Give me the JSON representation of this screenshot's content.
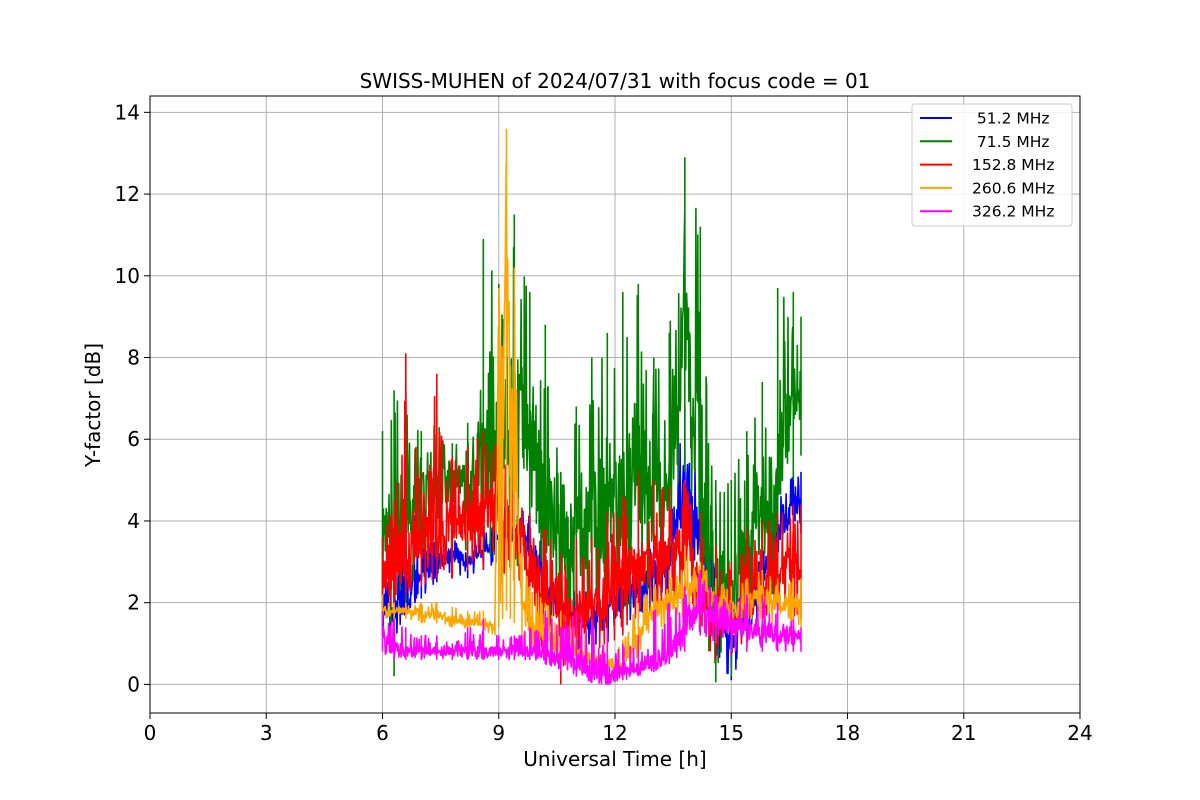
{
  "chart_data": {
    "type": "line",
    "title": "SWISS-MUHEN of 2024/07/31 with focus code = 01",
    "xlabel": "Universal Time [h]",
    "ylabel": "Y-factor [dB]",
    "xlim": [
      0,
      24
    ],
    "ylim": [
      -0.7,
      14.4
    ],
    "xticks": [
      0,
      3,
      6,
      9,
      12,
      15,
      18,
      21,
      24
    ],
    "yticks": [
      0,
      2,
      4,
      6,
      8,
      10,
      12,
      14
    ],
    "grid": true,
    "legend_position": "top-right",
    "series": [
      {
        "name": " 51.2 MHz",
        "color": "#0000ff",
        "x": [
          6.0,
          6.3,
          6.6,
          7.0,
          7.4,
          7.8,
          8.2,
          8.6,
          9.0,
          9.4,
          9.8,
          10.2,
          10.6,
          11.0,
          11.4,
          11.8,
          12.2,
          12.6,
          13.0,
          13.4,
          13.8,
          14.2,
          14.6,
          15.0,
          15.4,
          15.8,
          16.2,
          16.6,
          16.8
        ],
        "y": [
          2.0,
          1.6,
          2.2,
          2.6,
          3.0,
          3.2,
          3.0,
          3.3,
          3.6,
          3.7,
          3.4,
          2.6,
          1.9,
          1.7,
          1.5,
          1.8,
          2.1,
          2.4,
          2.6,
          3.0,
          4.8,
          3.6,
          2.2,
          1.0,
          1.8,
          2.6,
          3.6,
          4.4,
          4.5
        ],
        "min": [
          1.2,
          1.0,
          1.8,
          2.1,
          2.5,
          2.7,
          2.6,
          2.8,
          3.0,
          3.2,
          2.8,
          1.6,
          1.0,
          0.8,
          0.7,
          1.0,
          1.3,
          1.6,
          1.9,
          2.2,
          3.0,
          2.2,
          0.6,
          0.1,
          0.9,
          1.6,
          2.6,
          3.6,
          3.7
        ],
        "max": [
          2.8,
          2.4,
          6.8,
          3.4,
          3.6,
          3.7,
          3.5,
          3.9,
          4.2,
          4.6,
          4.1,
          3.3,
          2.6,
          2.4,
          2.2,
          2.4,
          2.7,
          3.1,
          3.4,
          3.8,
          6.8,
          4.6,
          3.0,
          2.0,
          2.6,
          3.4,
          4.6,
          5.2,
          5.2
        ]
      },
      {
        "name": " 71.5 MHz",
        "color": "#008000",
        "x": [
          6.0,
          6.3,
          6.6,
          7.0,
          7.4,
          7.8,
          8.2,
          8.6,
          9.0,
          9.4,
          9.8,
          10.2,
          10.6,
          11.0,
          11.4,
          11.8,
          12.2,
          12.6,
          13.0,
          13.4,
          13.8,
          14.2,
          14.6,
          15.0,
          15.4,
          15.8,
          16.2,
          16.6,
          16.8
        ],
        "y": [
          3.5,
          4.0,
          4.2,
          4.6,
          4.8,
          4.9,
          5.0,
          5.0,
          6.5,
          6.8,
          6.0,
          4.6,
          3.5,
          3.6,
          4.2,
          4.5,
          4.6,
          5.2,
          4.8,
          5.0,
          9.0,
          5.0,
          2.5,
          2.2,
          3.4,
          4.0,
          5.0,
          7.2,
          7.0
        ],
        "min": [
          1.8,
          0.2,
          2.0,
          2.4,
          3.0,
          3.4,
          3.2,
          2.8,
          2.2,
          2.8,
          2.2,
          1.0,
          0.6,
          0.6,
          1.4,
          1.8,
          1.6,
          2.2,
          2.0,
          2.2,
          5.2,
          1.6,
          0.05,
          0.2,
          1.4,
          1.8,
          2.4,
          5.0,
          5.6
        ],
        "max": [
          6.2,
          7.2,
          7.2,
          6.2,
          6.6,
          5.9,
          6.4,
          10.9,
          9.8,
          11.5,
          9.6,
          8.8,
          5.2,
          6.8,
          8.0,
          8.6,
          9.6,
          9.8,
          8.0,
          8.6,
          12.9,
          11.2,
          5.0,
          5.0,
          6.2,
          7.4,
          9.7,
          9.6,
          9.0
        ]
      },
      {
        "name": "152.8 MHz",
        "color": "#ff0000",
        "x": [
          6.0,
          6.3,
          6.6,
          7.0,
          7.4,
          7.8,
          8.2,
          8.6,
          9.0,
          9.4,
          9.8,
          10.2,
          10.6,
          11.0,
          11.4,
          11.8,
          12.2,
          12.6,
          13.0,
          13.4,
          13.8,
          14.2,
          14.6,
          15.0,
          15.4,
          15.8,
          16.2,
          16.6,
          16.8
        ],
        "y": [
          2.6,
          2.8,
          3.4,
          3.6,
          3.8,
          4.0,
          4.0,
          4.2,
          4.4,
          3.6,
          3.0,
          2.2,
          1.6,
          1.8,
          2.0,
          2.2,
          2.6,
          3.0,
          3.0,
          3.2,
          3.4,
          2.4,
          1.8,
          1.6,
          2.0,
          2.4,
          2.8,
          3.0,
          3.0
        ],
        "min": [
          1.6,
          1.8,
          2.2,
          2.4,
          2.6,
          2.6,
          2.8,
          2.8,
          2.6,
          1.8,
          1.4,
          0.6,
          0.0,
          0.5,
          0.8,
          0.9,
          1.2,
          1.6,
          1.8,
          1.9,
          2.0,
          1.2,
          0.6,
          0.7,
          1.0,
          1.2,
          1.6,
          1.6,
          1.6
        ],
        "max": [
          3.6,
          4.5,
          8.1,
          5.2,
          7.6,
          5.6,
          5.8,
          6.2,
          5.8,
          5.0,
          4.2,
          3.8,
          3.2,
          3.6,
          3.6,
          4.2,
          4.6,
          5.2,
          5.0,
          4.8,
          5.0,
          4.2,
          3.4,
          3.0,
          3.8,
          4.0,
          4.2,
          4.4,
          4.4
        ]
      },
      {
        "name": "260.6 MHz",
        "color": "#ffa500",
        "x": [
          6.0,
          6.3,
          6.6,
          7.0,
          7.4,
          7.8,
          8.2,
          8.6,
          8.9,
          9.0,
          9.1,
          9.2,
          9.3,
          9.4,
          9.6,
          9.8,
          10.2,
          10.6,
          11.0,
          11.4,
          11.8,
          12.2,
          12.6,
          13.0,
          13.4,
          13.8,
          14.2,
          14.6,
          15.0,
          15.4,
          15.8,
          16.2,
          16.6,
          16.8
        ],
        "y": [
          1.8,
          1.8,
          1.8,
          1.7,
          1.7,
          1.6,
          1.5,
          1.5,
          1.4,
          8.5,
          6.0,
          12.5,
          5.0,
          7.0,
          2.0,
          1.4,
          1.2,
          1.0,
          0.8,
          0.6,
          0.5,
          0.5,
          1.2,
          1.8,
          2.0,
          2.4,
          2.4,
          2.0,
          1.8,
          2.0,
          2.2,
          2.0,
          2.0,
          2.0
        ],
        "min": [
          1.5,
          1.6,
          1.6,
          1.5,
          1.5,
          1.4,
          1.3,
          1.3,
          1.2,
          1.4,
          1.6,
          1.8,
          1.6,
          1.5,
          1.0,
          0.9,
          0.8,
          0.6,
          0.5,
          0.3,
          0.2,
          0.2,
          0.7,
          1.2,
          1.4,
          1.6,
          1.6,
          1.4,
          1.2,
          1.4,
          1.6,
          1.4,
          1.4,
          1.4
        ],
        "max": [
          2.2,
          2.0,
          2.0,
          2.0,
          2.0,
          1.9,
          1.8,
          1.8,
          1.7,
          9.7,
          8.0,
          13.6,
          7.8,
          10.2,
          3.6,
          2.4,
          2.0,
          1.8,
          1.4,
          1.2,
          1.0,
          1.1,
          2.0,
          2.6,
          2.8,
          3.4,
          3.0,
          2.6,
          2.4,
          2.6,
          2.8,
          2.6,
          2.6,
          2.6
        ]
      },
      {
        "name": "326.2 MHz",
        "color": "#ff00ff",
        "x": [
          6.0,
          6.3,
          6.6,
          7.0,
          7.4,
          7.8,
          8.2,
          8.6,
          9.0,
          9.4,
          9.8,
          10.2,
          10.6,
          11.0,
          11.4,
          11.8,
          12.2,
          12.6,
          13.0,
          13.4,
          13.8,
          14.2,
          14.6,
          15.0,
          15.4,
          15.8,
          16.2,
          16.6,
          16.8
        ],
        "y": [
          1.2,
          0.9,
          0.8,
          0.8,
          0.8,
          0.8,
          0.8,
          0.8,
          0.8,
          0.8,
          0.8,
          0.7,
          0.6,
          0.5,
          0.3,
          0.2,
          0.3,
          0.4,
          0.6,
          0.8,
          1.4,
          2.0,
          1.6,
          1.4,
          1.4,
          1.4,
          1.2,
          1.2,
          1.2
        ],
        "min": [
          0.8,
          0.6,
          0.6,
          0.6,
          0.6,
          0.6,
          0.6,
          0.6,
          0.6,
          0.6,
          0.6,
          0.5,
          0.3,
          0.2,
          0.05,
          0.0,
          0.1,
          0.2,
          0.3,
          0.5,
          0.8,
          1.2,
          1.0,
          0.8,
          0.8,
          0.8,
          0.8,
          0.8,
          0.8
        ],
        "max": [
          1.8,
          1.6,
          1.4,
          1.2,
          1.2,
          1.0,
          1.4,
          1.6,
          1.2,
          1.2,
          1.4,
          1.8,
          1.4,
          1.8,
          1.6,
          1.4,
          1.0,
          1.2,
          1.8,
          2.0,
          2.4,
          2.8,
          2.2,
          2.0,
          2.2,
          2.2,
          2.0,
          1.6,
          1.4
        ]
      }
    ]
  }
}
